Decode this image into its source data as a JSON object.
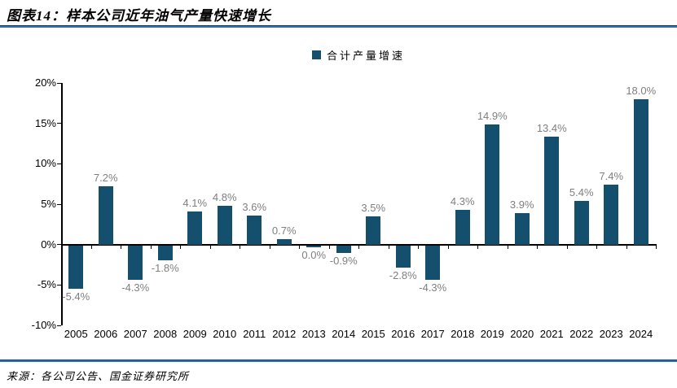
{
  "header": {
    "title": "图表14：样本公司近年油气产量快速增长"
  },
  "legend": {
    "label": "合计产量增速",
    "marker_color": "#14506E"
  },
  "chart_data": {
    "type": "bar",
    "title": "合计产量增速",
    "categories": [
      "2005",
      "2006",
      "2007",
      "2008",
      "2009",
      "2010",
      "2011",
      "2012",
      "2013",
      "2014",
      "2015",
      "2016",
      "2017",
      "2018",
      "2019",
      "2020",
      "2021",
      "2022",
      "2023",
      "2024"
    ],
    "values": [
      -5.4,
      7.2,
      -4.3,
      -1.8,
      4.1,
      4.8,
      3.6,
      0.7,
      0.0,
      -0.9,
      3.5,
      -2.8,
      -4.3,
      4.3,
      14.9,
      3.9,
      13.4,
      5.4,
      7.4,
      18.0
    ],
    "labels": [
      "-5.4%",
      "7.2%",
      "-4.3%",
      "-1.8%",
      "4.1%",
      "4.8%",
      "3.6%",
      "0.7%",
      "0.0%",
      "-0.9%",
      "3.5%",
      "-2.8%",
      "-4.3%",
      "4.3%",
      "14.9%",
      "3.9%",
      "13.4%",
      "5.4%",
      "7.4%",
      "18.0%"
    ],
    "xlabel": "",
    "ylabel": "",
    "ylim": [
      -10,
      20
    ],
    "y_ticks": [
      "20%",
      "15%",
      "10%",
      "5%",
      "0%",
      "-5%",
      "-10%"
    ],
    "bar_color": "#14506E",
    "label_color": "#7f7f7f",
    "grid": false,
    "legend_position": "top-center"
  },
  "footer": {
    "source": "来源：各公司公告、国金证券研究所"
  }
}
